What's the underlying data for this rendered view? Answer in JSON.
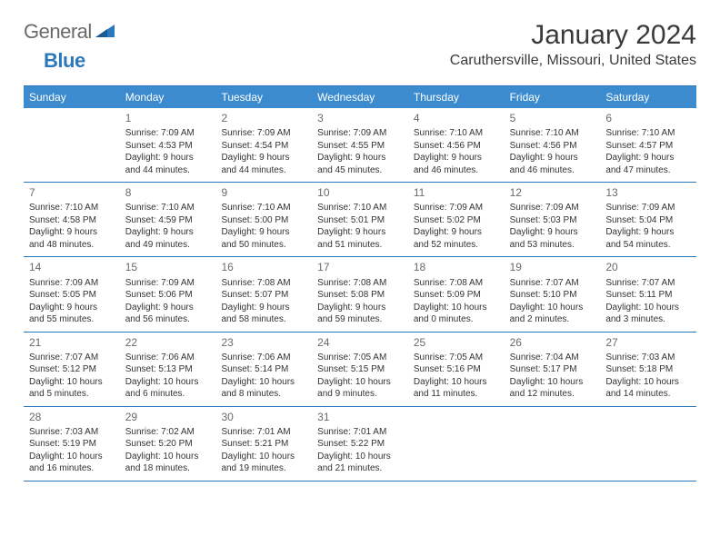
{
  "logo": {
    "text1": "General",
    "text2": "Blue"
  },
  "title": "January 2024",
  "location": "Caruthersville, Missouri, United States",
  "colors": {
    "header_bg": "#3c8bcf",
    "header_text": "#ffffff",
    "border": "#2c78bd",
    "body_text": "#333333",
    "day_num": "#6a6a6a",
    "logo_gray": "#6a6a6a",
    "logo_blue": "#2c78bd",
    "background": "#ffffff"
  },
  "typography": {
    "title_fontsize": 30,
    "location_fontsize": 16,
    "header_fontsize": 12,
    "daynum_fontsize": 12,
    "detail_fontsize": 10
  },
  "day_headers": [
    "Sunday",
    "Monday",
    "Tuesday",
    "Wednesday",
    "Thursday",
    "Friday",
    "Saturday"
  ],
  "weeks": [
    [
      {
        "num": "",
        "sunrise": "",
        "sunset": "",
        "daylight1": "",
        "daylight2": ""
      },
      {
        "num": "1",
        "sunrise": "Sunrise: 7:09 AM",
        "sunset": "Sunset: 4:53 PM",
        "daylight1": "Daylight: 9 hours",
        "daylight2": "and 44 minutes."
      },
      {
        "num": "2",
        "sunrise": "Sunrise: 7:09 AM",
        "sunset": "Sunset: 4:54 PM",
        "daylight1": "Daylight: 9 hours",
        "daylight2": "and 44 minutes."
      },
      {
        "num": "3",
        "sunrise": "Sunrise: 7:09 AM",
        "sunset": "Sunset: 4:55 PM",
        "daylight1": "Daylight: 9 hours",
        "daylight2": "and 45 minutes."
      },
      {
        "num": "4",
        "sunrise": "Sunrise: 7:10 AM",
        "sunset": "Sunset: 4:56 PM",
        "daylight1": "Daylight: 9 hours",
        "daylight2": "and 46 minutes."
      },
      {
        "num": "5",
        "sunrise": "Sunrise: 7:10 AM",
        "sunset": "Sunset: 4:56 PM",
        "daylight1": "Daylight: 9 hours",
        "daylight2": "and 46 minutes."
      },
      {
        "num": "6",
        "sunrise": "Sunrise: 7:10 AM",
        "sunset": "Sunset: 4:57 PM",
        "daylight1": "Daylight: 9 hours",
        "daylight2": "and 47 minutes."
      }
    ],
    [
      {
        "num": "7",
        "sunrise": "Sunrise: 7:10 AM",
        "sunset": "Sunset: 4:58 PM",
        "daylight1": "Daylight: 9 hours",
        "daylight2": "and 48 minutes."
      },
      {
        "num": "8",
        "sunrise": "Sunrise: 7:10 AM",
        "sunset": "Sunset: 4:59 PM",
        "daylight1": "Daylight: 9 hours",
        "daylight2": "and 49 minutes."
      },
      {
        "num": "9",
        "sunrise": "Sunrise: 7:10 AM",
        "sunset": "Sunset: 5:00 PM",
        "daylight1": "Daylight: 9 hours",
        "daylight2": "and 50 minutes."
      },
      {
        "num": "10",
        "sunrise": "Sunrise: 7:10 AM",
        "sunset": "Sunset: 5:01 PM",
        "daylight1": "Daylight: 9 hours",
        "daylight2": "and 51 minutes."
      },
      {
        "num": "11",
        "sunrise": "Sunrise: 7:09 AM",
        "sunset": "Sunset: 5:02 PM",
        "daylight1": "Daylight: 9 hours",
        "daylight2": "and 52 minutes."
      },
      {
        "num": "12",
        "sunrise": "Sunrise: 7:09 AM",
        "sunset": "Sunset: 5:03 PM",
        "daylight1": "Daylight: 9 hours",
        "daylight2": "and 53 minutes."
      },
      {
        "num": "13",
        "sunrise": "Sunrise: 7:09 AM",
        "sunset": "Sunset: 5:04 PM",
        "daylight1": "Daylight: 9 hours",
        "daylight2": "and 54 minutes."
      }
    ],
    [
      {
        "num": "14",
        "sunrise": "Sunrise: 7:09 AM",
        "sunset": "Sunset: 5:05 PM",
        "daylight1": "Daylight: 9 hours",
        "daylight2": "and 55 minutes."
      },
      {
        "num": "15",
        "sunrise": "Sunrise: 7:09 AM",
        "sunset": "Sunset: 5:06 PM",
        "daylight1": "Daylight: 9 hours",
        "daylight2": "and 56 minutes."
      },
      {
        "num": "16",
        "sunrise": "Sunrise: 7:08 AM",
        "sunset": "Sunset: 5:07 PM",
        "daylight1": "Daylight: 9 hours",
        "daylight2": "and 58 minutes."
      },
      {
        "num": "17",
        "sunrise": "Sunrise: 7:08 AM",
        "sunset": "Sunset: 5:08 PM",
        "daylight1": "Daylight: 9 hours",
        "daylight2": "and 59 minutes."
      },
      {
        "num": "18",
        "sunrise": "Sunrise: 7:08 AM",
        "sunset": "Sunset: 5:09 PM",
        "daylight1": "Daylight: 10 hours",
        "daylight2": "and 0 minutes."
      },
      {
        "num": "19",
        "sunrise": "Sunrise: 7:07 AM",
        "sunset": "Sunset: 5:10 PM",
        "daylight1": "Daylight: 10 hours",
        "daylight2": "and 2 minutes."
      },
      {
        "num": "20",
        "sunrise": "Sunrise: 7:07 AM",
        "sunset": "Sunset: 5:11 PM",
        "daylight1": "Daylight: 10 hours",
        "daylight2": "and 3 minutes."
      }
    ],
    [
      {
        "num": "21",
        "sunrise": "Sunrise: 7:07 AM",
        "sunset": "Sunset: 5:12 PM",
        "daylight1": "Daylight: 10 hours",
        "daylight2": "and 5 minutes."
      },
      {
        "num": "22",
        "sunrise": "Sunrise: 7:06 AM",
        "sunset": "Sunset: 5:13 PM",
        "daylight1": "Daylight: 10 hours",
        "daylight2": "and 6 minutes."
      },
      {
        "num": "23",
        "sunrise": "Sunrise: 7:06 AM",
        "sunset": "Sunset: 5:14 PM",
        "daylight1": "Daylight: 10 hours",
        "daylight2": "and 8 minutes."
      },
      {
        "num": "24",
        "sunrise": "Sunrise: 7:05 AM",
        "sunset": "Sunset: 5:15 PM",
        "daylight1": "Daylight: 10 hours",
        "daylight2": "and 9 minutes."
      },
      {
        "num": "25",
        "sunrise": "Sunrise: 7:05 AM",
        "sunset": "Sunset: 5:16 PM",
        "daylight1": "Daylight: 10 hours",
        "daylight2": "and 11 minutes."
      },
      {
        "num": "26",
        "sunrise": "Sunrise: 7:04 AM",
        "sunset": "Sunset: 5:17 PM",
        "daylight1": "Daylight: 10 hours",
        "daylight2": "and 12 minutes."
      },
      {
        "num": "27",
        "sunrise": "Sunrise: 7:03 AM",
        "sunset": "Sunset: 5:18 PM",
        "daylight1": "Daylight: 10 hours",
        "daylight2": "and 14 minutes."
      }
    ],
    [
      {
        "num": "28",
        "sunrise": "Sunrise: 7:03 AM",
        "sunset": "Sunset: 5:19 PM",
        "daylight1": "Daylight: 10 hours",
        "daylight2": "and 16 minutes."
      },
      {
        "num": "29",
        "sunrise": "Sunrise: 7:02 AM",
        "sunset": "Sunset: 5:20 PM",
        "daylight1": "Daylight: 10 hours",
        "daylight2": "and 18 minutes."
      },
      {
        "num": "30",
        "sunrise": "Sunrise: 7:01 AM",
        "sunset": "Sunset: 5:21 PM",
        "daylight1": "Daylight: 10 hours",
        "daylight2": "and 19 minutes."
      },
      {
        "num": "31",
        "sunrise": "Sunrise: 7:01 AM",
        "sunset": "Sunset: 5:22 PM",
        "daylight1": "Daylight: 10 hours",
        "daylight2": "and 21 minutes."
      },
      {
        "num": "",
        "sunrise": "",
        "sunset": "",
        "daylight1": "",
        "daylight2": ""
      },
      {
        "num": "",
        "sunrise": "",
        "sunset": "",
        "daylight1": "",
        "daylight2": ""
      },
      {
        "num": "",
        "sunrise": "",
        "sunset": "",
        "daylight1": "",
        "daylight2": ""
      }
    ]
  ]
}
